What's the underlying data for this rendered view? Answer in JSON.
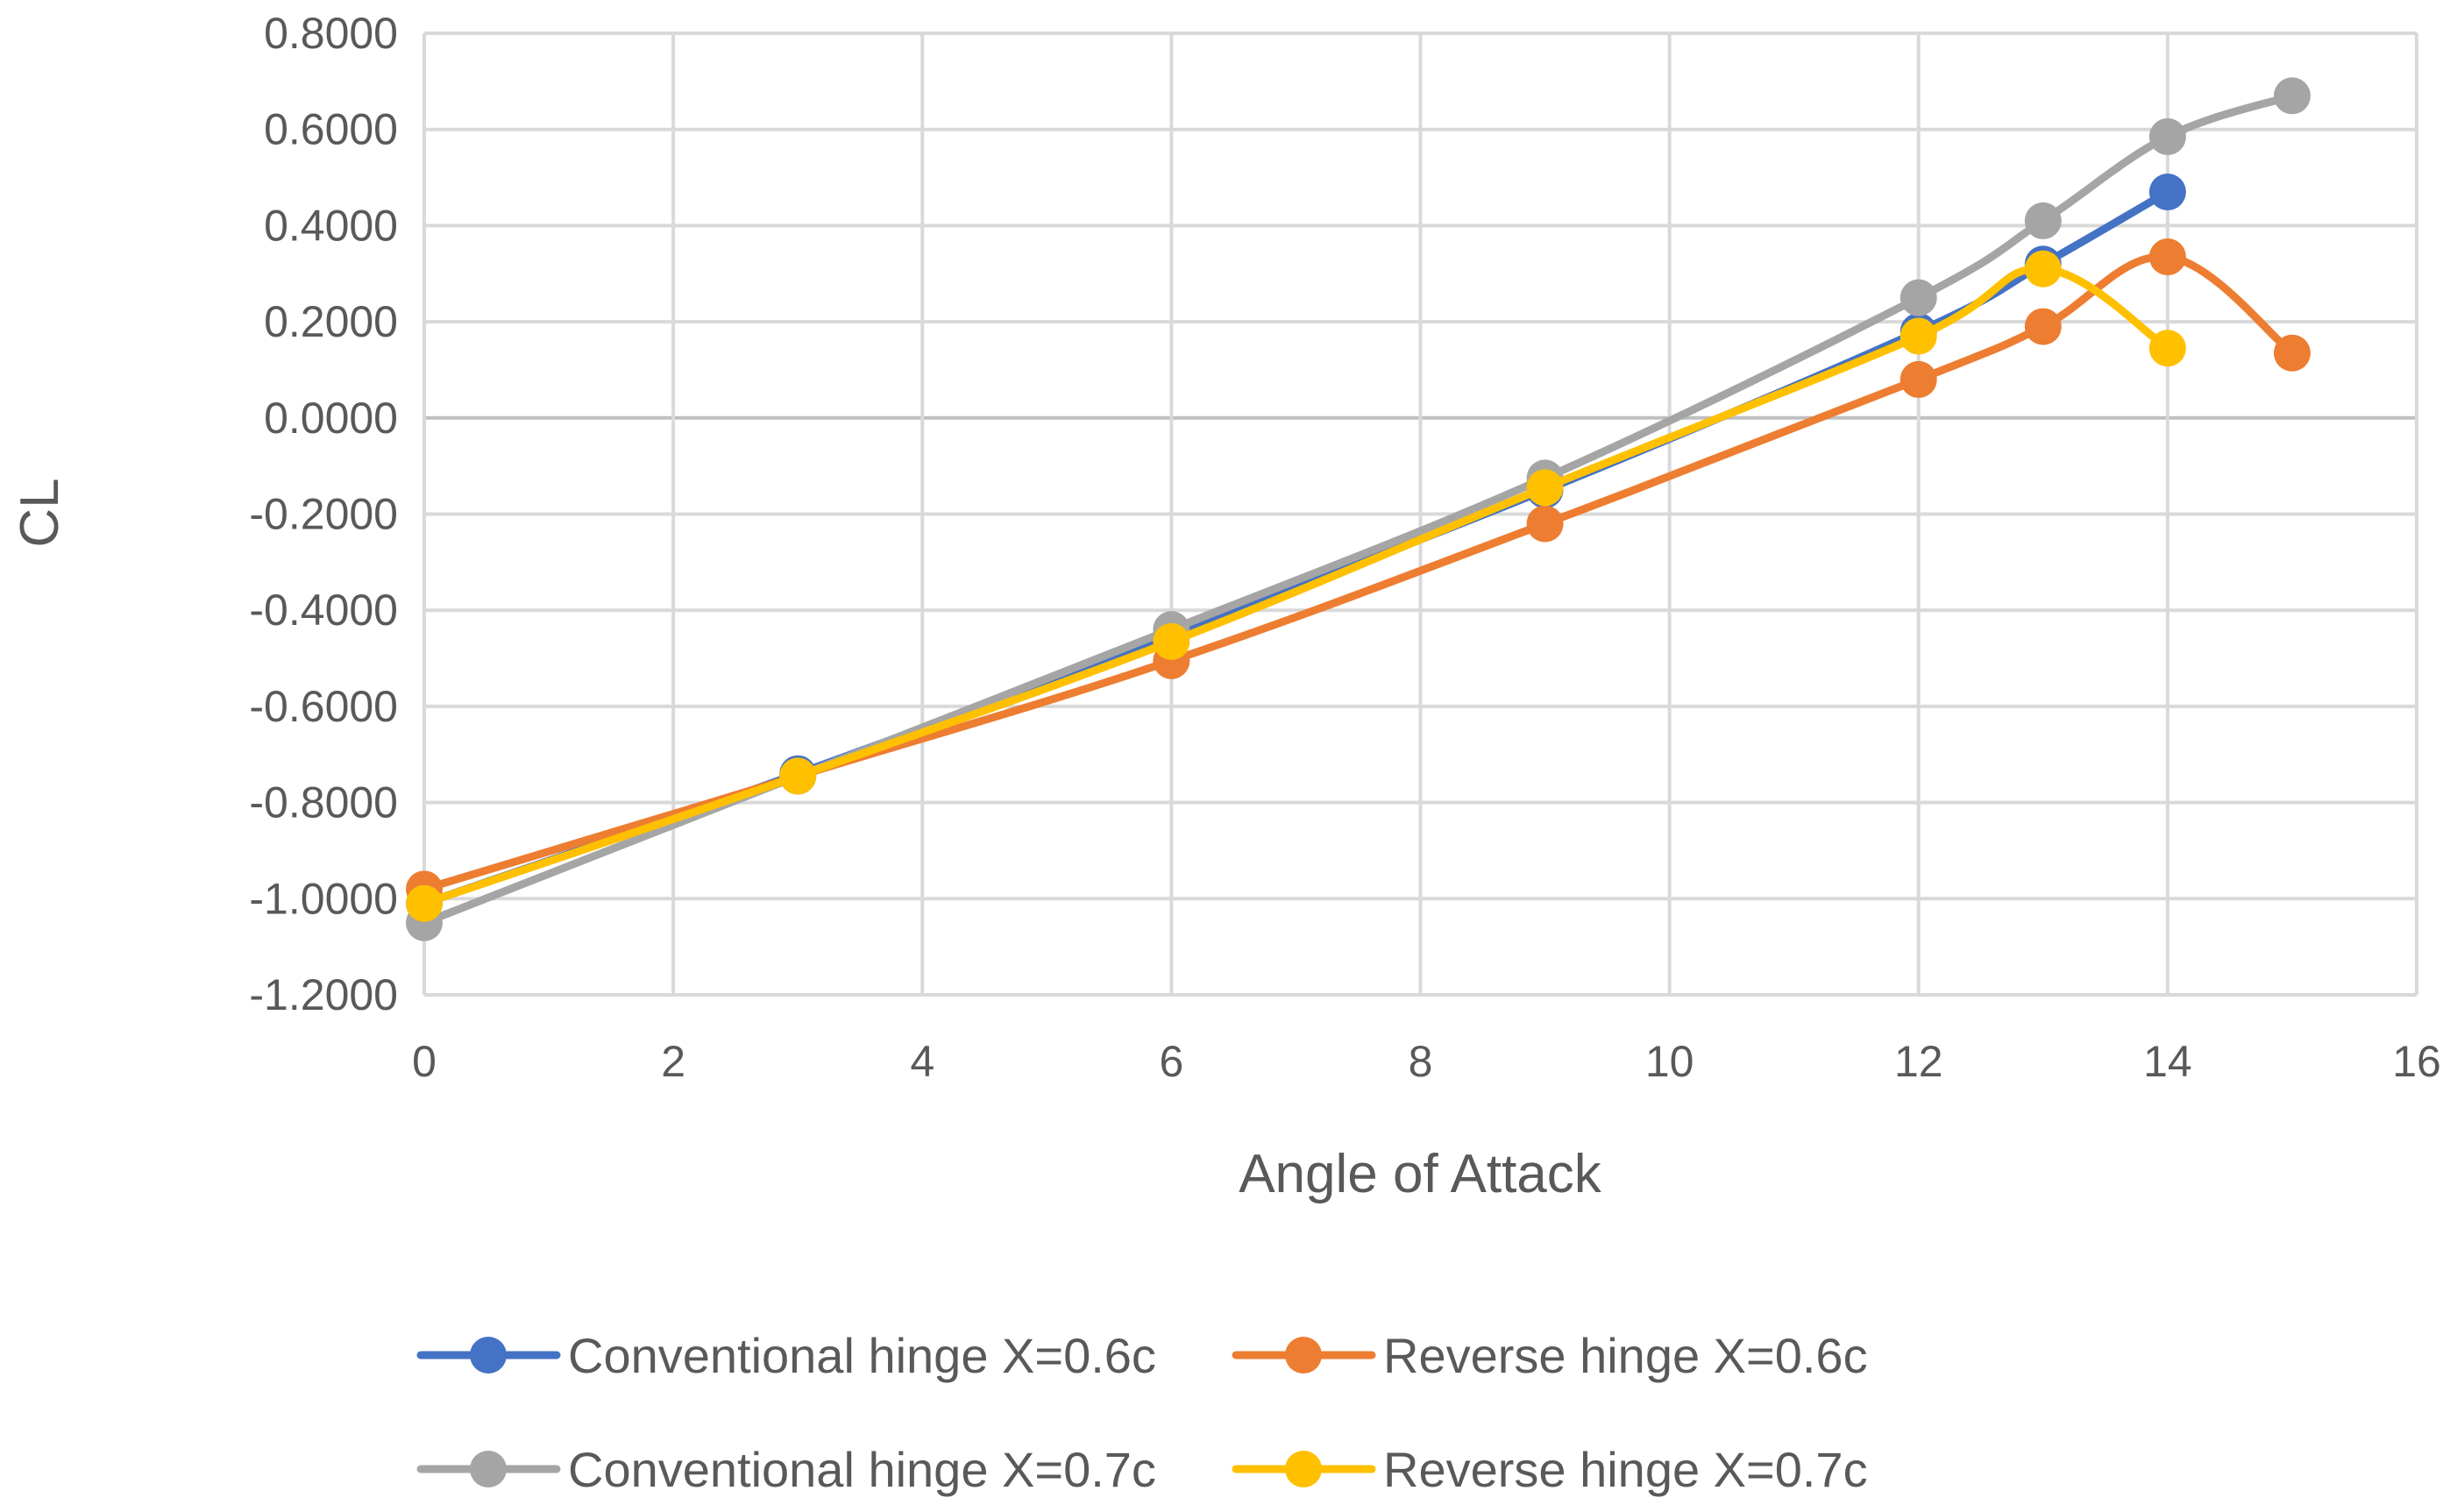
{
  "chart_data": {
    "type": "line",
    "title": "",
    "xlabel": "Angle of Attack",
    "ylabel": "CL",
    "xlim": [
      0,
      16
    ],
    "ylim": [
      -1.2,
      0.8
    ],
    "x_ticks": [
      "0",
      "2",
      "4",
      "6",
      "8",
      "10",
      "12",
      "14",
      "16"
    ],
    "y_ticks": [
      "0.8000",
      "0.6000",
      "0.4000",
      "0.2000",
      "0.0000",
      "-0.2000",
      "-0.4000",
      "-0.6000",
      "-0.8000",
      "-1.0000",
      "-1.2000"
    ],
    "grid": true,
    "legend_position": "bottom",
    "series": [
      {
        "name": "Conventional hinge X=0.6c",
        "color": "#4472C4",
        "x": [
          0,
          3,
          6,
          9,
          12,
          13,
          14
        ],
        "y": [
          -1.01,
          -0.74,
          -0.45,
          -0.15,
          0.18,
          0.32,
          0.47
        ]
      },
      {
        "name": "Reverse hinge X=0.6c",
        "color": "#ED7D31",
        "x": [
          0,
          3,
          6,
          9,
          12,
          13,
          14,
          15
        ],
        "y": [
          -0.98,
          -0.745,
          -0.505,
          -0.22,
          0.08,
          0.19,
          0.335,
          0.135
        ]
      },
      {
        "name": "Conventional hinge X=0.7c",
        "color": "#A5A5A5",
        "x": [
          0,
          3,
          6,
          9,
          12,
          13,
          14,
          15
        ],
        "y": [
          -1.05,
          -0.745,
          -0.44,
          -0.125,
          0.25,
          0.41,
          0.585,
          0.67
        ]
      },
      {
        "name": "Reverse hinge X=0.7c",
        "color": "#FFC000",
        "x": [
          0,
          3,
          6,
          9,
          12,
          13,
          14
        ],
        "y": [
          -1.01,
          -0.745,
          -0.465,
          -0.145,
          0.17,
          0.31,
          0.145
        ]
      }
    ]
  }
}
